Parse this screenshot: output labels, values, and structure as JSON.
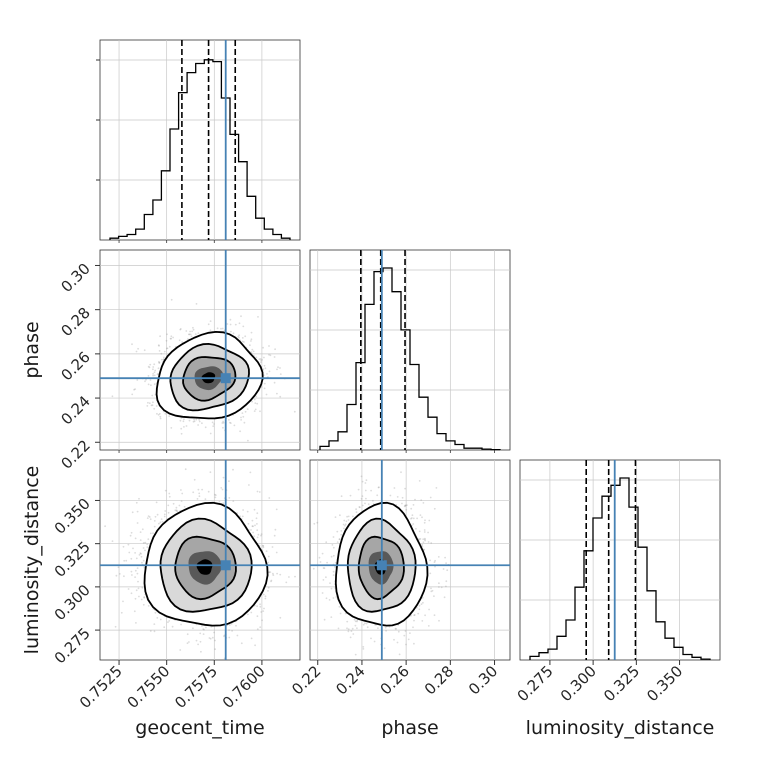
{
  "chart_data": {
    "type": "corner",
    "parameters": [
      "geocent_time",
      "phase",
      "luminosity_distance"
    ],
    "axis_labels": {
      "geocent_time": "geocent_time",
      "phase": "phase",
      "luminosity_distance": "luminosity_distance"
    },
    "ranges": {
      "geocent_time": [
        0.7515,
        0.762
      ],
      "phase": [
        0.2165,
        0.307
      ],
      "luminosity_distance": [
        0.2577,
        0.3734
      ]
    },
    "ticks": {
      "geocent_time": [
        "0.7525",
        "0.7550",
        "0.7575",
        "0.7600"
      ],
      "phase": [
        "0.22",
        "0.24",
        "0.26",
        "0.28",
        "0.30"
      ],
      "luminosity_distance": [
        "0.275",
        "0.300",
        "0.325",
        "0.350"
      ]
    },
    "truths": {
      "geocent_time": 0.7581,
      "phase": 0.249,
      "luminosity_distance": 0.3125
    },
    "quantiles": {
      "geocent_time": [
        0.7558,
        0.7572,
        0.7586
      ],
      "phase": [
        0.2395,
        0.2485,
        0.2595
      ],
      "luminosity_distance": [
        0.296,
        0.309,
        0.3245
      ]
    },
    "histograms": {
      "geocent_time": [
        0.01,
        0.02,
        0.03,
        0.06,
        0.14,
        0.22,
        0.38,
        0.61,
        0.81,
        0.92,
        0.97,
        0.99,
        0.98,
        0.78,
        0.58,
        0.43,
        0.24,
        0.12,
        0.06,
        0.03,
        0.01
      ],
      "phase": [
        0.02,
        0.05,
        0.1,
        0.25,
        0.48,
        0.8,
        0.98,
        1.0,
        0.87,
        0.66,
        0.47,
        0.29,
        0.18,
        0.09,
        0.05,
        0.03,
        0.01,
        0.01,
        0.005,
        0.002
      ],
      "luminosity_distance": [
        0.02,
        0.04,
        0.06,
        0.13,
        0.22,
        0.4,
        0.6,
        0.78,
        0.9,
        0.96,
        1.0,
        0.84,
        0.62,
        0.38,
        0.21,
        0.12,
        0.07,
        0.03,
        0.015,
        0.005
      ]
    },
    "joint_distributions": [
      {
        "x": "geocent_time",
        "y": "phase",
        "center": [
          0.7572,
          0.2492
        ],
        "spread": [
          0.00125,
          0.0088
        ],
        "tilt": -0.12
      },
      {
        "x": "geocent_time",
        "y": "luminosity_distance",
        "center": [
          0.757,
          0.3115
        ],
        "spread": [
          0.00145,
          0.016
        ],
        "tilt": 0.0
      },
      {
        "x": "phase",
        "y": "luminosity_distance",
        "center": [
          0.2485,
          0.3115
        ],
        "spread": [
          0.0093,
          0.016
        ],
        "tilt": 0.0
      }
    ],
    "grid": true,
    "truth_color": "#4682b4",
    "contour_color": "#000000",
    "sample_color": "#9a9a9a"
  }
}
